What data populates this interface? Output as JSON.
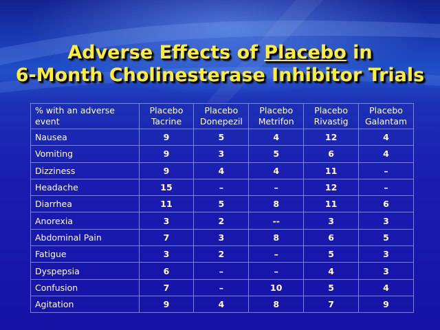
{
  "title": {
    "line1_part1": "Adverse Effects of ",
    "line1_underlined": "Placebo",
    "line1_part2": " in",
    "line2": "6-Month Cholinesterase Inhibitor Trials"
  },
  "table": {
    "header_first_line1": "% with an adverse",
    "header_first_line2": "event",
    "columns": [
      {
        "line1": "Placebo",
        "line2": "Tacrine"
      },
      {
        "line1": "Placebo",
        "line2": "Donepezil"
      },
      {
        "line1": "Placebo",
        "line2": "Metrifon"
      },
      {
        "line1": "Placebo",
        "line2": "Rivastig"
      },
      {
        "line1": "Placebo",
        "line2": "Galantam"
      }
    ],
    "rows": [
      {
        "label": "Nausea",
        "values": [
          "9",
          "5",
          "4",
          "12",
          "4"
        ]
      },
      {
        "label": "Vomiting",
        "values": [
          "9",
          "3",
          "5",
          "6",
          "4"
        ]
      },
      {
        "label": "Dizziness",
        "values": [
          "9",
          "4",
          "4",
          "11",
          "–"
        ]
      },
      {
        "label": "Headache",
        "values": [
          "15",
          "–",
          "–",
          "12",
          "–"
        ]
      },
      {
        "label": "Diarrhea",
        "values": [
          "11",
          "5",
          "8",
          "11",
          "6"
        ]
      },
      {
        "label": "Anorexia",
        "values": [
          "3",
          "2",
          "--",
          "3",
          "3"
        ]
      },
      {
        "label": "Abdominal Pain",
        "values": [
          "7",
          "3",
          "8",
          "6",
          "5"
        ]
      },
      {
        "label": "Fatigue",
        "values": [
          "3",
          "2",
          "–",
          "5",
          "3"
        ]
      },
      {
        "label": "Dyspepsia",
        "values": [
          "6",
          "–",
          "–",
          "4",
          "3"
        ]
      },
      {
        "label": "Confusion",
        "values": [
          "7",
          "–",
          "10",
          "5",
          "4"
        ]
      },
      {
        "label": "Agitation",
        "values": [
          "9",
          "4",
          "8",
          "7",
          "9"
        ]
      }
    ]
  }
}
